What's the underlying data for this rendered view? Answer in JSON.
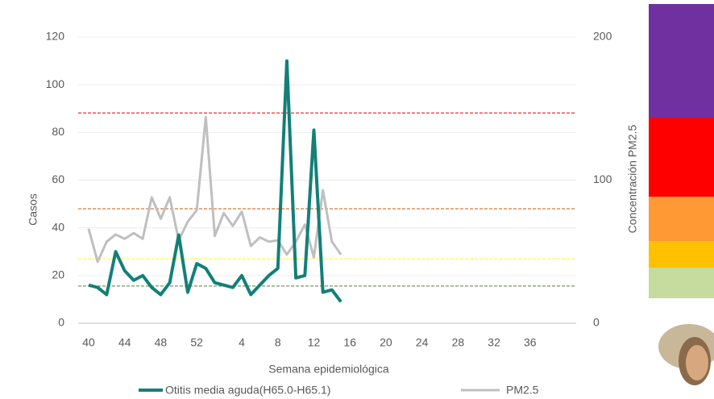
{
  "chart_data": {
    "type": "line",
    "x_label": "Semana epidemiológica",
    "y_label": "Casos",
    "y2_label": "Concentración PM2.5",
    "categories": [
      "40",
      null,
      null,
      null,
      "44",
      null,
      null,
      null,
      "48",
      null,
      null,
      null,
      "52",
      null,
      null,
      null,
      null,
      "4",
      null,
      null,
      null,
      "8",
      null,
      null,
      null,
      "12",
      null,
      null,
      null,
      "16",
      null,
      null,
      null,
      "20",
      null,
      null,
      null,
      "24",
      null,
      null,
      null,
      "28",
      null,
      null,
      null,
      "32",
      null,
      null,
      null,
      "36",
      null,
      null,
      null
    ],
    "series": [
      {
        "name": "Otitis media aguda(H65.0-H65.1)",
        "color": "#138078",
        "values": [
          16,
          15,
          12,
          30,
          22,
          18,
          20,
          15,
          12,
          17,
          37,
          13,
          25,
          23,
          17,
          16,
          15,
          20,
          12,
          16,
          20,
          23,
          110,
          19,
          20,
          81,
          13,
          14,
          9,
          null,
          null,
          null,
          null,
          null,
          null,
          null,
          null,
          null,
          null,
          null,
          null,
          null,
          null,
          null,
          null,
          null,
          null,
          null,
          null,
          null,
          null,
          null,
          null
        ]
      },
      {
        "name": "PM2.5",
        "color": "#bfbfbf",
        "axis": "y2",
        "values": [
          66,
          43,
          57,
          62,
          59,
          63,
          59,
          88,
          73,
          88,
          58,
          71,
          79,
          144,
          61,
          77,
          68,
          78,
          54,
          60,
          57,
          58,
          48,
          57,
          69,
          46,
          93,
          57,
          48,
          null,
          null,
          null,
          null,
          null,
          null,
          null,
          null,
          null,
          null,
          null,
          null,
          null,
          null,
          null,
          null,
          null,
          null,
          null,
          null,
          null,
          null,
          null,
          null
        ]
      }
    ],
    "thresholds": [
      {
        "value": 26,
        "color": "#548235",
        "axis": "y2"
      },
      {
        "value": 45,
        "color": "#ffff00",
        "axis": "y2"
      },
      {
        "value": 80,
        "color": "#c55a11",
        "axis": "y2"
      },
      {
        "value": 147,
        "color": "#e00000",
        "axis": "y2"
      }
    ],
    "ylim": [
      0,
      120
    ],
    "yticks": [
      0,
      20,
      40,
      60,
      80,
      100,
      120
    ],
    "y2lim": [
      0,
      200
    ],
    "y2ticks": [
      0,
      100,
      200
    ],
    "grid": true,
    "legend": "bottom"
  }
}
